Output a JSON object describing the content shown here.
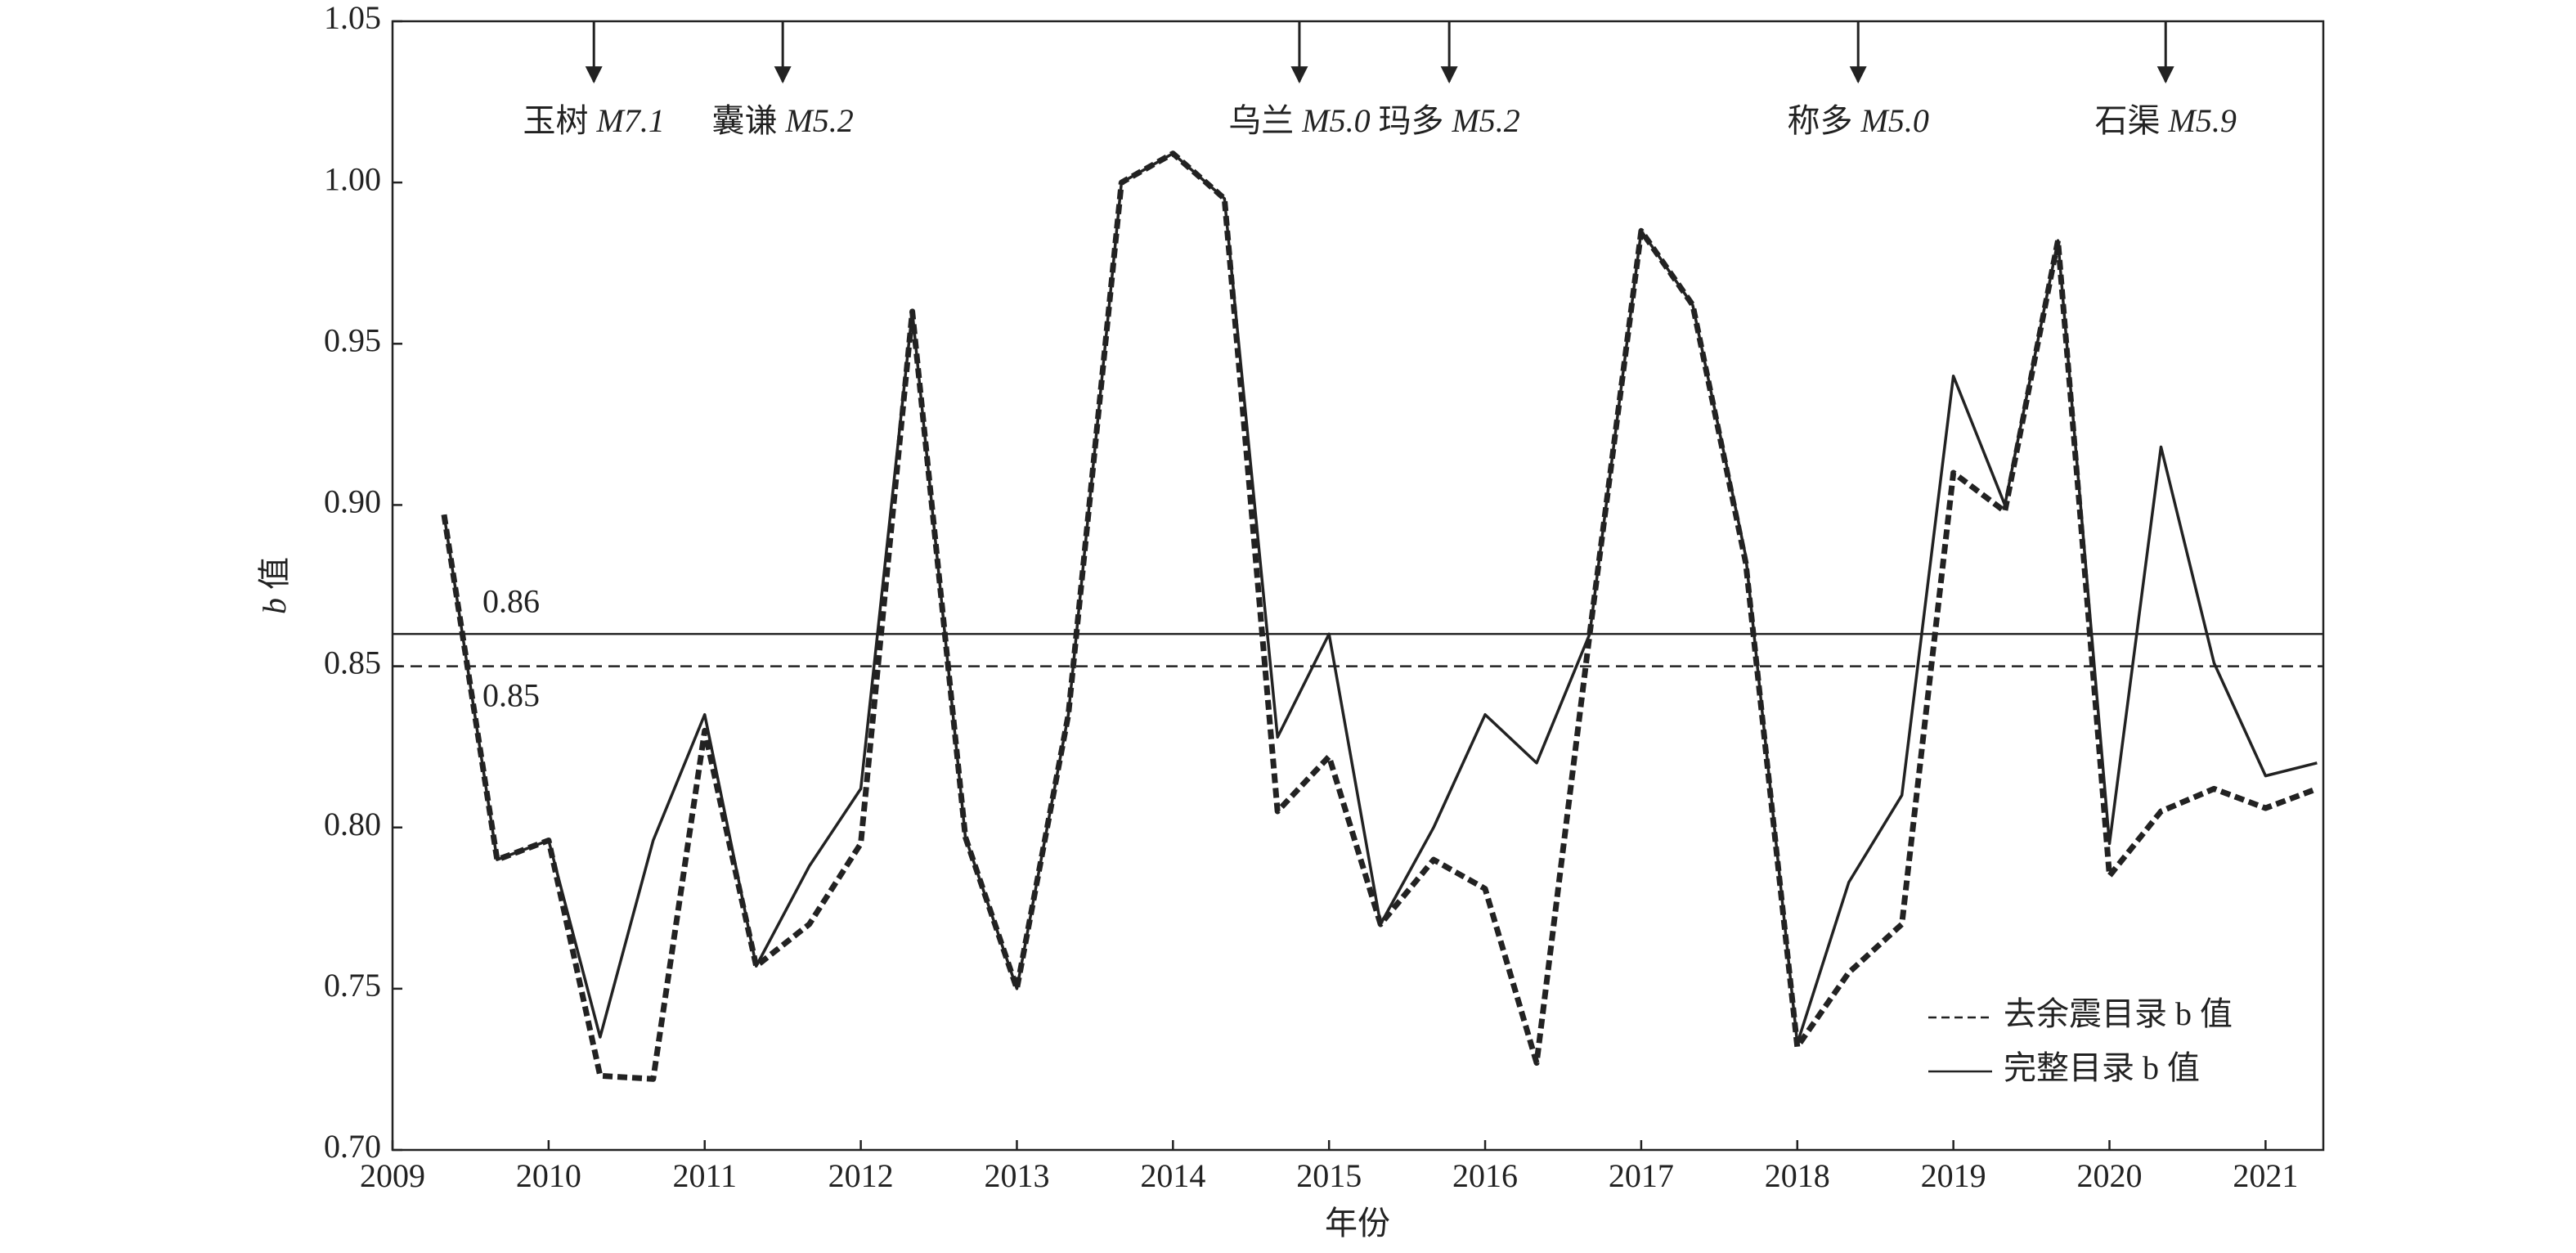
{
  "chart_data": {
    "type": "line",
    "x": [
      2009.33,
      2009.67,
      2010,
      2010.33,
      2010.67,
      2011,
      2011.33,
      2011.67,
      2012,
      2012.33,
      2012.67,
      2013,
      2013.33,
      2013.67,
      2014,
      2014.33,
      2014.67,
      2015,
      2015.33,
      2015.67,
      2016,
      2016.33,
      2016.67,
      2017,
      2017.33,
      2017.67,
      2018,
      2018.33,
      2018.67,
      2019,
      2019.33,
      2019.67,
      2020,
      2020.33,
      2020.67,
      2021,
      2021.33
    ],
    "series": [
      {
        "name": "去余震目录 b 值",
        "color": "#222222",
        "dash": true,
        "values": [
          0.897,
          0.79,
          0.796,
          0.723,
          0.722,
          0.83,
          0.757,
          0.77,
          0.795,
          0.96,
          0.797,
          0.75,
          0.835,
          1.0,
          1.009,
          0.995,
          0.805,
          0.822,
          0.77,
          0.79,
          0.781,
          0.727,
          0.86,
          0.985,
          0.962,
          0.882,
          0.732,
          0.755,
          0.77,
          0.91,
          0.898,
          0.982,
          0.785,
          0.805,
          0.812,
          0.806,
          0.812
        ]
      },
      {
        "name": "完整目录 b 值",
        "color": "#222222",
        "dash": false,
        "values": [
          0.897,
          0.79,
          0.796,
          0.735,
          0.796,
          0.835,
          0.757,
          0.788,
          0.812,
          0.96,
          0.797,
          0.75,
          0.835,
          1.0,
          1.009,
          0.995,
          0.828,
          0.86,
          0.77,
          0.8,
          0.835,
          0.82,
          0.86,
          0.985,
          0.962,
          0.884,
          0.733,
          0.783,
          0.81,
          0.94,
          0.9,
          0.982,
          0.795,
          0.918,
          0.851,
          0.816,
          0.82
        ]
      }
    ],
    "xlim": [
      2009,
      2021.37
    ],
    "xticks": [
      2009,
      2010,
      2011,
      2012,
      2013,
      2014,
      2015,
      2016,
      2017,
      2018,
      2019,
      2020,
      2021
    ],
    "ylim": [
      0.7,
      1.05
    ],
    "yticks": [
      {
        "value": 0.7,
        "label": "0.70"
      },
      0.75,
      {
        "value": 0.8,
        "label": "0.80"
      },
      0.85,
      {
        "value": 0.9,
        "label": "0.90"
      },
      0.95,
      {
        "value": 1.0,
        "label": "1.00"
      },
      1.05
    ],
    "x_label": "年份",
    "y_label_var": "b",
    "y_label_unit": "值",
    "reference_lines": [
      {
        "value": 0.86,
        "dash": false
      },
      {
        "value": 0.85,
        "dash": true
      }
    ],
    "events": [
      {
        "x": 2010.29,
        "place": "玉树",
        "magnitude": "M7.1"
      },
      {
        "x": 2011.5,
        "place": "囊谦",
        "magnitude": "M5.2"
      },
      {
        "x": 2014.81,
        "place": "乌兰",
        "magnitude": "M5.0"
      },
      {
        "x": 2015.77,
        "place": "玛多",
        "magnitude": "M5.2"
      },
      {
        "x": 2018.39,
        "place": "称多",
        "magnitude": "M5.0"
      },
      {
        "x": 2020.36,
        "place": "石渠",
        "magnitude": "M5.9"
      }
    ],
    "legend": "lower right"
  }
}
